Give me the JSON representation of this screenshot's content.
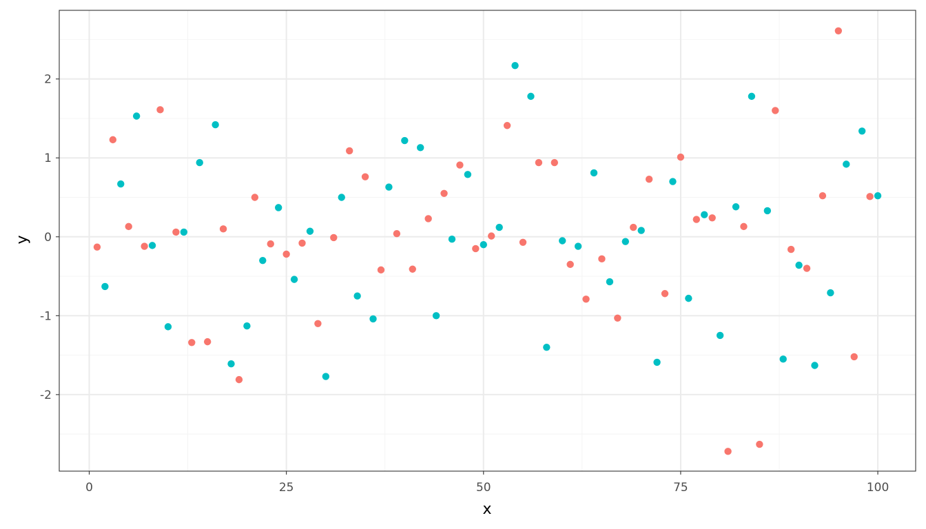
{
  "chart_data": {
    "type": "scatter",
    "title": "",
    "xlabel": "x",
    "ylabel": "y",
    "xlim": [
      -3.8,
      104.8
    ],
    "ylim": [
      -2.97,
      2.87
    ],
    "xticks": [
      0,
      25,
      50,
      75,
      100
    ],
    "xtick_labels": [
      "0",
      "25",
      "50",
      "75",
      "100"
    ],
    "yticks": [
      -2,
      -1,
      0,
      1,
      2
    ],
    "ytick_labels": [
      "-2",
      "-1",
      "0",
      "1",
      "2"
    ],
    "xminor": [
      12.5,
      37.5,
      62.5,
      87.5
    ],
    "yminor": [
      -2.5,
      -1.5,
      -0.5,
      0.5,
      1.5,
      2.5
    ],
    "grid": true,
    "legend": "none",
    "colors": {
      "panel_border": "#333333",
      "grid_major": "#ebebeb",
      "grid_minor": "#f4f4f4",
      "tick": "#333333"
    },
    "series": [
      {
        "color": "#F8766D",
        "points": [
          [
            1,
            -0.13
          ],
          [
            3,
            1.23
          ],
          [
            5,
            0.13
          ],
          [
            7,
            -0.12
          ],
          [
            9,
            1.61
          ],
          [
            11,
            0.06
          ],
          [
            13,
            -1.34
          ],
          [
            15,
            -1.33
          ],
          [
            17,
            0.1
          ],
          [
            19,
            -1.81
          ],
          [
            21,
            0.5
          ],
          [
            23,
            -0.09
          ],
          [
            25,
            -0.22
          ],
          [
            27,
            -0.08
          ],
          [
            29,
            -1.1
          ],
          [
            31,
            -0.01
          ],
          [
            33,
            1.09
          ],
          [
            35,
            0.76
          ],
          [
            37,
            -0.42
          ],
          [
            39,
            0.04
          ],
          [
            41,
            -0.41
          ],
          [
            43,
            0.23
          ],
          [
            45,
            0.55
          ],
          [
            47,
            0.91
          ],
          [
            49,
            -0.15
          ],
          [
            51,
            0.01
          ],
          [
            53,
            1.41
          ],
          [
            55,
            -0.07
          ],
          [
            57,
            0.94
          ],
          [
            59,
            0.94
          ],
          [
            61,
            -0.35
          ],
          [
            63,
            -0.79
          ],
          [
            65,
            -0.28
          ],
          [
            67,
            -1.03
          ],
          [
            69,
            0.12
          ],
          [
            71,
            0.73
          ],
          [
            73,
            -0.72
          ],
          [
            75,
            1.01
          ],
          [
            77,
            0.22
          ],
          [
            79,
            0.24
          ],
          [
            81,
            -2.72
          ],
          [
            83,
            0.13
          ],
          [
            85,
            -2.63
          ],
          [
            87,
            1.6
          ],
          [
            89,
            -0.16
          ],
          [
            91,
            -0.4
          ],
          [
            93,
            0.52
          ],
          [
            95,
            2.61
          ],
          [
            97,
            -1.52
          ],
          [
            99,
            0.51
          ]
        ]
      },
      {
        "color": "#00BFC4",
        "points": [
          [
            2,
            -0.63
          ],
          [
            4,
            0.67
          ],
          [
            6,
            1.53
          ],
          [
            8,
            -0.11
          ],
          [
            10,
            -1.14
          ],
          [
            12,
            0.06
          ],
          [
            14,
            0.94
          ],
          [
            16,
            1.42
          ],
          [
            18,
            -1.61
          ],
          [
            20,
            -1.13
          ],
          [
            22,
            -0.3
          ],
          [
            24,
            0.37
          ],
          [
            26,
            -0.54
          ],
          [
            28,
            0.07
          ],
          [
            30,
            -1.77
          ],
          [
            32,
            0.5
          ],
          [
            34,
            -0.75
          ],
          [
            36,
            -1.04
          ],
          [
            38,
            0.63
          ],
          [
            40,
            1.22
          ],
          [
            42,
            1.13
          ],
          [
            44,
            -1.0
          ],
          [
            46,
            -0.03
          ],
          [
            48,
            0.79
          ],
          [
            50,
            -0.1
          ],
          [
            52,
            0.12
          ],
          [
            54,
            2.17
          ],
          [
            56,
            1.78
          ],
          [
            58,
            -1.4
          ],
          [
            60,
            -0.05
          ],
          [
            62,
            -0.12
          ],
          [
            64,
            0.81
          ],
          [
            66,
            -0.57
          ],
          [
            68,
            -0.06
          ],
          [
            70,
            0.08
          ],
          [
            72,
            -1.59
          ],
          [
            74,
            0.7
          ],
          [
            76,
            -0.78
          ],
          [
            78,
            0.28
          ],
          [
            80,
            -1.25
          ],
          [
            82,
            0.38
          ],
          [
            84,
            1.78
          ],
          [
            86,
            0.33
          ],
          [
            88,
            -1.55
          ],
          [
            90,
            -0.36
          ],
          [
            92,
            -1.63
          ],
          [
            94,
            -0.71
          ],
          [
            96,
            0.92
          ],
          [
            98,
            1.34
          ],
          [
            100,
            0.52
          ]
        ]
      }
    ]
  }
}
